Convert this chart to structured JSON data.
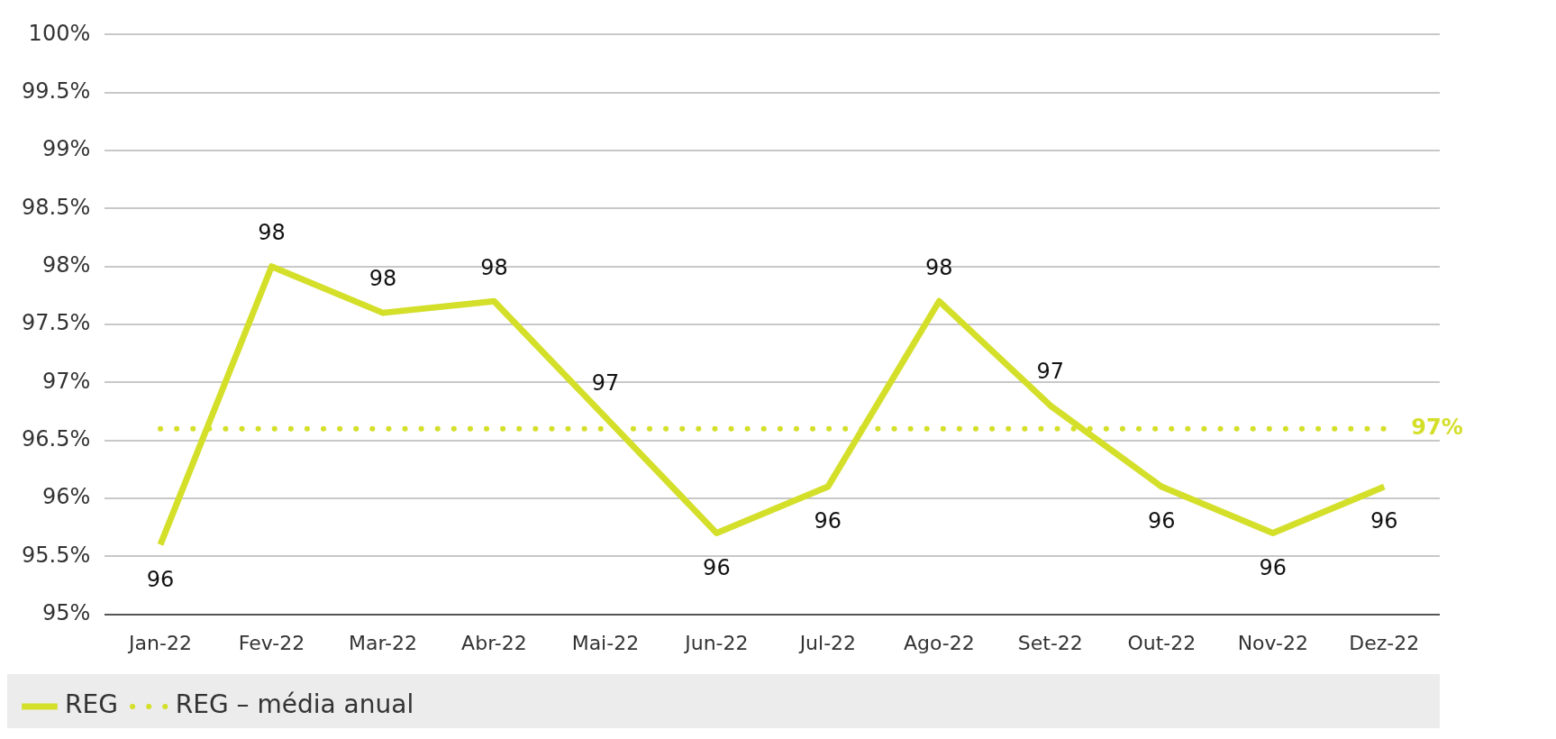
{
  "chart_data": {
    "type": "line",
    "categories": [
      "Jan-22",
      "Fev-22",
      "Mar-22",
      "Abr-22",
      "Mai-22",
      "Jun-22",
      "Jul-22",
      "Ago-22",
      "Set-22",
      "Out-22",
      "Nov-22",
      "Dez-22"
    ],
    "series": [
      {
        "name": "REG",
        "color": "#d4df2a",
        "values": [
          95.6,
          98.0,
          97.6,
          97.7,
          96.7,
          95.7,
          96.1,
          97.7,
          96.8,
          96.1,
          95.7,
          96.1
        ],
        "value_labels": [
          "96",
          "98",
          "98",
          "98",
          "97",
          "96",
          "96",
          "98",
          "97",
          "96",
          "96",
          "96"
        ],
        "line_style": "solid"
      },
      {
        "name": "REG – média anual",
        "color": "#d4df2a",
        "values": [
          96.6,
          96.6,
          96.6,
          96.6,
          96.6,
          96.6,
          96.6,
          96.6,
          96.6,
          96.6,
          96.6,
          96.6
        ],
        "value_labels": [
          null,
          null,
          null,
          null,
          null,
          null,
          null,
          null,
          null,
          null,
          null,
          "97%"
        ],
        "line_style": "dotted"
      }
    ],
    "ylim": [
      95,
      100
    ],
    "yticks": [
      {
        "value": 95,
        "label": "95%"
      },
      {
        "value": 95.5,
        "label": "95.5%"
      },
      {
        "value": 96,
        "label": "96%"
      },
      {
        "value": 96.5,
        "label": "96.5%"
      },
      {
        "value": 97,
        "label": "97%"
      },
      {
        "value": 97.5,
        "label": "97.5%"
      },
      {
        "value": 98,
        "label": "98%"
      },
      {
        "value": 98.5,
        "label": "98.5%"
      },
      {
        "value": 99,
        "label": "99%"
      },
      {
        "value": 99.5,
        "label": "99.5%"
      },
      {
        "value": 100,
        "label": "100%"
      }
    ],
    "grid": "y",
    "legend": "bottom left",
    "marker": "none"
  }
}
